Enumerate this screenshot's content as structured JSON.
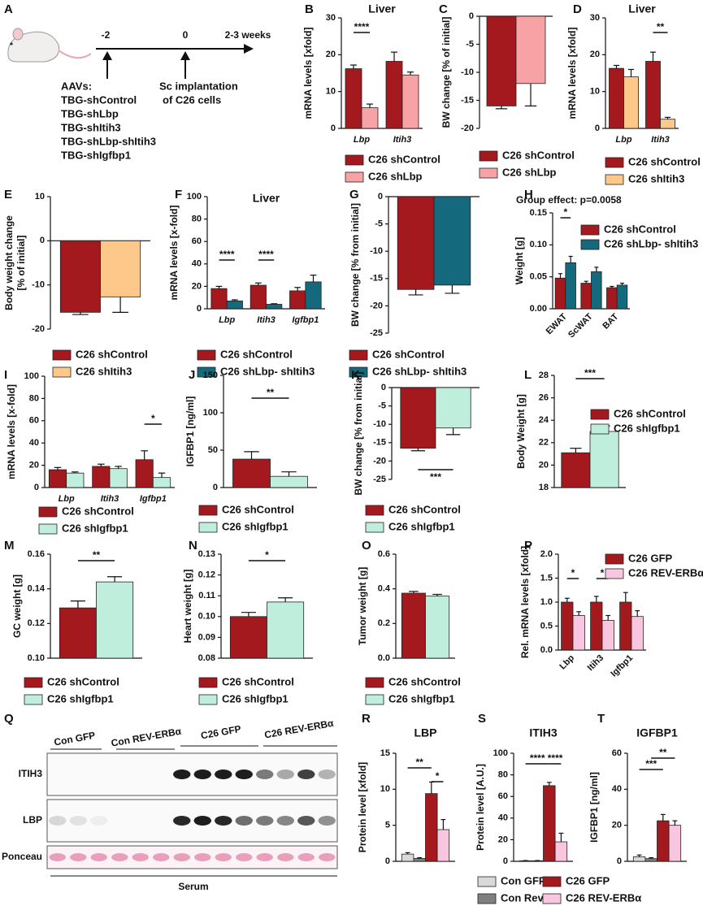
{
  "panel_a": {
    "panel": "A",
    "timeline": [
      "-2",
      "0",
      "2-3 weeks"
    ],
    "aav_header": "AAVs:",
    "aavs": [
      "TBG-shControl",
      "TBG-shLbp",
      "TBG-shItih3",
      "TBG-shLbp-shItih3",
      "TBG-shIgfbp1"
    ],
    "implantation": [
      "Sc implantation",
      "of C26 cells"
    ]
  },
  "chart_data": [
    {
      "panel": "B",
      "type": "bar",
      "title": "Liver",
      "ylabel": "mRNA levels [xfold]",
      "categories": [
        "Lbp",
        "Itih3"
      ],
      "category_style": "italic",
      "series": [
        {
          "name": "C26 shControl",
          "color": "#a3191e",
          "values": [
            16.2,
            18.2
          ],
          "errors": [
            1.0,
            2.5
          ]
        },
        {
          "name": "C26 shLbp",
          "color": "#f7a3a6",
          "values": [
            5.6,
            14.5
          ],
          "errors": [
            1.0,
            0.8
          ]
        }
      ],
      "ylim": [
        0,
        30
      ],
      "yticks": [
        0,
        10,
        20,
        30
      ],
      "annotations": [
        "****"
      ],
      "legend": "below"
    },
    {
      "panel": "C",
      "type": "bar",
      "ylabel": "BW change [% of initial]",
      "categories": [
        null
      ],
      "series": [
        {
          "name": "C26 shControl",
          "color": "#a3191e",
          "values": [
            -16
          ],
          "errors": [
            0.5
          ]
        },
        {
          "name": "C26 shLbp",
          "color": "#f7a3a6",
          "values": [
            -12
          ],
          "errors": [
            4
          ]
        }
      ],
      "ylim": [
        -20,
        0
      ],
      "yticks": [
        -20,
        -15,
        -10,
        -5,
        0
      ],
      "legend": "below"
    },
    {
      "panel": "D",
      "type": "bar",
      "title": "Liver",
      "ylabel": "mRNA levels [xfold]",
      "categories": [
        "Lbp",
        "Itih3"
      ],
      "category_style": "italic",
      "series": [
        {
          "name": "C26 shControl",
          "color": "#a3191e",
          "values": [
            16.3,
            18.2
          ],
          "errors": [
            0.8,
            2.5
          ]
        },
        {
          "name": "C26 shItih3",
          "color": "#fdc88a",
          "values": [
            14,
            2.5
          ],
          "errors": [
            2,
            0.5
          ]
        }
      ],
      "ylim": [
        0,
        30
      ],
      "yticks": [
        0,
        10,
        20,
        30
      ],
      "annotations": [
        "**"
      ],
      "legend": "below"
    },
    {
      "panel": "E",
      "type": "bar",
      "ylabel": [
        "Body weight change",
        "[% of initial]"
      ],
      "categories": [
        null
      ],
      "series": [
        {
          "name": "C26 shControl",
          "color": "#a3191e",
          "values": [
            -16.2
          ],
          "errors": [
            0.5
          ]
        },
        {
          "name": "C26 shItih3",
          "color": "#fdc88a",
          "values": [
            -12.7
          ],
          "errors": [
            3.5
          ]
        }
      ],
      "ylim": [
        -20,
        10
      ],
      "yticks": [
        -20,
        -10,
        0,
        10
      ],
      "legend": "below"
    },
    {
      "panel": "F",
      "type": "bar",
      "title": "Liver",
      "ylabel": "mRNA levels [x-fold]",
      "categories": [
        "Lbp",
        "Itih3",
        "Igfbp1"
      ],
      "category_style": "italic",
      "series": [
        {
          "name": "C26 shControl",
          "color": "#a3191e",
          "values": [
            18,
            21,
            16
          ],
          "errors": [
            2,
            2,
            3
          ]
        },
        {
          "name": "C26 shLbp- shItih3",
          "color": "#14697c",
          "values": [
            7,
            4,
            24
          ],
          "errors": [
            1,
            0.5,
            6
          ]
        }
      ],
      "ylim": [
        0,
        100
      ],
      "yticks": [
        0,
        20,
        40,
        60,
        80,
        100
      ],
      "annotations": [
        "****",
        "****"
      ],
      "legend": "below"
    },
    {
      "panel": "G",
      "type": "bar",
      "ylabel": "BW change [% from initial]",
      "categories": [
        null
      ],
      "series": [
        {
          "name": "C26 shControl",
          "color": "#a3191e",
          "values": [
            -17
          ],
          "errors": [
            1
          ]
        },
        {
          "name": "C26 shLbp- shItih3",
          "color": "#14697c",
          "values": [
            -16.2
          ],
          "errors": [
            1.5
          ]
        }
      ],
      "ylim": [
        -25,
        0
      ],
      "yticks": [
        -25,
        -20,
        -15,
        -10,
        -5,
        0
      ],
      "legend": "below"
    },
    {
      "panel": "H",
      "type": "bar",
      "subtitle": "Group effect: p=0.0058",
      "ylabel": "Weight [g]",
      "categories": [
        "EWAT",
        "ScWAT",
        "BAT"
      ],
      "xtick_rotation": 45,
      "series": [
        {
          "name": "C26 shControl",
          "color": "#a3191e",
          "values": [
            0.048,
            0.04,
            0.033
          ],
          "errors": [
            0.007,
            0.003,
            0.002
          ]
        },
        {
          "name": "C26 shLbp- shItih3",
          "color": "#14697c",
          "values": [
            0.072,
            0.058,
            0.037
          ],
          "errors": [
            0.01,
            0.007,
            0.003
          ]
        }
      ],
      "ylim": [
        0,
        0.15
      ],
      "yticks": [
        {
          "value": 0,
          "label": "0.00"
        },
        {
          "value": 0.05,
          "label": "0.05"
        },
        {
          "value": 0.1,
          "label": "0.10"
        },
        {
          "value": 0.15,
          "label": "0.15"
        }
      ],
      "annotations": [
        "*"
      ],
      "legend": "right"
    },
    {
      "panel": "I",
      "type": "bar",
      "ylabel": "mRNA levels [x-fold]",
      "categories": [
        "Lbp",
        "Itih3",
        "Igfbp1"
      ],
      "category_style": "italic",
      "series": [
        {
          "name": "C26 shControl",
          "color": "#a3191e",
          "values": [
            16,
            19,
            25
          ],
          "errors": [
            2,
            2,
            8
          ]
        },
        {
          "name": "C26 shIgfbp1",
          "color": "#bfeedd",
          "values": [
            13,
            17,
            9
          ],
          "errors": [
            1,
            2,
            4
          ]
        }
      ],
      "ylim": [
        0,
        100
      ],
      "yticks": [
        0,
        20,
        40,
        60,
        80,
        100
      ],
      "annotations": [
        "*"
      ],
      "legend": "below"
    },
    {
      "panel": "J",
      "type": "bar",
      "ylabel": "IGFBP1 [ng/ml]",
      "categories": [
        null
      ],
      "series": [
        {
          "name": "C26 shControl",
          "color": "#a3191e",
          "values": [
            38
          ],
          "errors": [
            10
          ]
        },
        {
          "name": "C26 shIgfbp1",
          "color": "#bfeedd",
          "values": [
            15
          ],
          "errors": [
            6
          ]
        }
      ],
      "ylim": [
        0,
        150
      ],
      "yticks": [
        0,
        50,
        100,
        150
      ],
      "annotations": [
        "**"
      ],
      "legend": "below"
    },
    {
      "panel": "K",
      "type": "bar",
      "ylabel": "BW change [% from initial]",
      "categories": [
        null
      ],
      "series": [
        {
          "name": "C26 shControl",
          "color": "#a3191e",
          "values": [
            -16.5
          ],
          "errors": [
            0.7
          ]
        },
        {
          "name": "C26 shIgfbp1",
          "color": "#bfeedd",
          "values": [
            -11
          ],
          "errors": [
            1.8
          ]
        }
      ],
      "ylim": [
        -25,
        0
      ],
      "yticks": [
        -25,
        -20,
        -15,
        -10,
        -5,
        0
      ],
      "annotations": [
        "***"
      ],
      "legend": "below"
    },
    {
      "panel": "L",
      "type": "bar",
      "ylabel": "Body Weight [g]",
      "categories": [
        null
      ],
      "series": [
        {
          "name": "C26 shControl",
          "color": "#a3191e",
          "values": [
            21.1
          ],
          "errors": [
            0.4
          ]
        },
        {
          "name": "C26 shIgfbp1",
          "color": "#bfeedd",
          "values": [
            23.0
          ],
          "errors": [
            0.5
          ]
        }
      ],
      "ylim": [
        18,
        28
      ],
      "yticks": [
        18,
        20,
        22,
        24,
        26,
        28
      ],
      "annotations": [
        "***"
      ],
      "legend": "right"
    },
    {
      "panel": "M",
      "type": "bar",
      "ylabel": "GC weight [g]",
      "categories": [
        null
      ],
      "series": [
        {
          "name": "C26 shControl",
          "color": "#a3191e",
          "values": [
            0.129
          ],
          "errors": [
            0.004
          ]
        },
        {
          "name": "C26 shIgfbp1",
          "color": "#bfeedd",
          "values": [
            0.144
          ],
          "errors": [
            0.003
          ]
        }
      ],
      "ylim": [
        0.1,
        0.16
      ],
      "yticks": [
        {
          "value": 0.1,
          "label": "0.10"
        },
        {
          "value": 0.12,
          "label": "0.12"
        },
        {
          "value": 0.14,
          "label": "0.14"
        },
        {
          "value": 0.16,
          "label": "0.16"
        }
      ],
      "annotations": [
        "**"
      ],
      "legend": "below"
    },
    {
      "panel": "N",
      "type": "bar",
      "ylabel": "Heart weight [g]",
      "categories": [
        null
      ],
      "series": [
        {
          "name": "C26 shControl",
          "color": "#a3191e",
          "values": [
            0.1
          ],
          "errors": [
            0.002
          ]
        },
        {
          "name": "C26 shIgfbp1",
          "color": "#bfeedd",
          "values": [
            0.107
          ],
          "errors": [
            0.002
          ]
        }
      ],
      "ylim": [
        0.08,
        0.13
      ],
      "yticks": [
        0.08,
        0.09,
        {
          "value": 0.1,
          "label": "0.10"
        },
        0.11,
        0.12,
        0.13
      ],
      "annotations": [
        "*"
      ],
      "legend": "below"
    },
    {
      "panel": "O",
      "type": "bar",
      "ylabel": "Tumor weight [g]",
      "categories": [
        null
      ],
      "series": [
        {
          "name": "C26 shControl",
          "color": "#a3191e",
          "values": [
            0.375
          ],
          "errors": [
            0.01
          ]
        },
        {
          "name": "C26 shIgfbp1",
          "color": "#bfeedd",
          "values": [
            0.358
          ],
          "errors": [
            0.01
          ]
        }
      ],
      "ylim": [
        0,
        0.6
      ],
      "yticks": [
        {
          "value": 0,
          "label": "0.0"
        },
        0.2,
        0.4,
        0.6
      ],
      "legend": "below"
    },
    {
      "panel": "P",
      "type": "bar",
      "ylabel": "Rel. mRNA levels [xfold]",
      "categories": [
        "Lbp",
        "Itih3",
        "Igfbp1"
      ],
      "xtick_rotation": 45,
      "series": [
        {
          "name": "C26 GFP",
          "color": "#a3191e",
          "values": [
            1.0,
            1.0,
            1.0
          ],
          "errors": [
            0.08,
            0.12,
            0.2
          ]
        },
        {
          "name": "C26 REV-ERBα",
          "color": "#f9c6df",
          "values": [
            0.72,
            0.62,
            0.7
          ],
          "errors": [
            0.08,
            0.1,
            0.12
          ]
        }
      ],
      "ylim": [
        0,
        2
      ],
      "yticks": [
        {
          "value": 0,
          "label": "0.0"
        },
        0.5,
        {
          "value": 1,
          "label": "1.0"
        },
        1.5,
        {
          "value": 2,
          "label": "2.0"
        }
      ],
      "annotations": [
        "*",
        "*"
      ],
      "legend": "right"
    },
    {
      "panel": "R",
      "type": "bar",
      "title": "LBP",
      "ylabel": "Protein level [xfold]",
      "categories": [
        null
      ],
      "series": [
        {
          "name": "Con GFP",
          "color": "#d9d9d9",
          "values": [
            1.0
          ],
          "errors": [
            0.2
          ]
        },
        {
          "name": "Con Rev",
          "color": "#7f7f7f",
          "values": [
            0.4
          ],
          "errors": [
            0.1
          ]
        },
        {
          "name": "C26 GFP",
          "color": "#a3191e",
          "values": [
            9.4
          ],
          "errors": [
            1.6
          ]
        },
        {
          "name": "C26 REV-ERBα",
          "color": "#f9c6df",
          "values": [
            4.4
          ],
          "errors": [
            1.4
          ]
        }
      ],
      "ylim": [
        0,
        15
      ],
      "yticks": [
        0,
        5,
        10,
        15
      ],
      "annotations": [
        "**",
        "*"
      ],
      "legend": "below"
    },
    {
      "panel": "S",
      "type": "bar",
      "title": "ITIH3",
      "ylabel": "Protein level [A.U.]",
      "categories": [
        null
      ],
      "series": [
        {
          "color": "#d9d9d9",
          "values": [
            0.5
          ],
          "errors": [
            0.2
          ]
        },
        {
          "color": "#7f7f7f",
          "values": [
            0.5
          ],
          "errors": [
            0.2
          ]
        },
        {
          "color": "#a3191e",
          "values": [
            70
          ],
          "errors": [
            3
          ]
        },
        {
          "color": "#f9c6df",
          "values": [
            18
          ],
          "errors": [
            8
          ]
        }
      ],
      "ylim": [
        0,
        100
      ],
      "yticks": [
        0,
        20,
        40,
        60,
        80,
        100
      ],
      "annotations": [
        "****",
        "****"
      ]
    },
    {
      "panel": "T",
      "type": "bar",
      "title": "IGFBP1",
      "ylabel": "IGFBP1 [ng/ml]",
      "categories": [
        null
      ],
      "series": [
        {
          "color": "#d9d9d9",
          "values": [
            2.5
          ],
          "errors": [
            1
          ]
        },
        {
          "color": "#7f7f7f",
          "values": [
            1.5
          ],
          "errors": [
            0.5
          ]
        },
        {
          "color": "#a3191e",
          "values": [
            22.5
          ],
          "errors": [
            3.5
          ]
        },
        {
          "color": "#f9c6df",
          "values": [
            20
          ],
          "errors": [
            2.5
          ]
        }
      ],
      "ylim": [
        0,
        60
      ],
      "yticks": [
        0,
        20,
        40,
        60
      ],
      "annotations": [
        "***",
        "**"
      ]
    }
  ],
  "panel_q": {
    "panel": "Q",
    "groups": [
      "Con GFP",
      "Con REV-ERBα",
      "C26 GFP",
      "C26 REV-ERBα"
    ],
    "rows": [
      "ITIH3",
      "LBP",
      "Ponceau"
    ],
    "sample": "Serum"
  }
}
